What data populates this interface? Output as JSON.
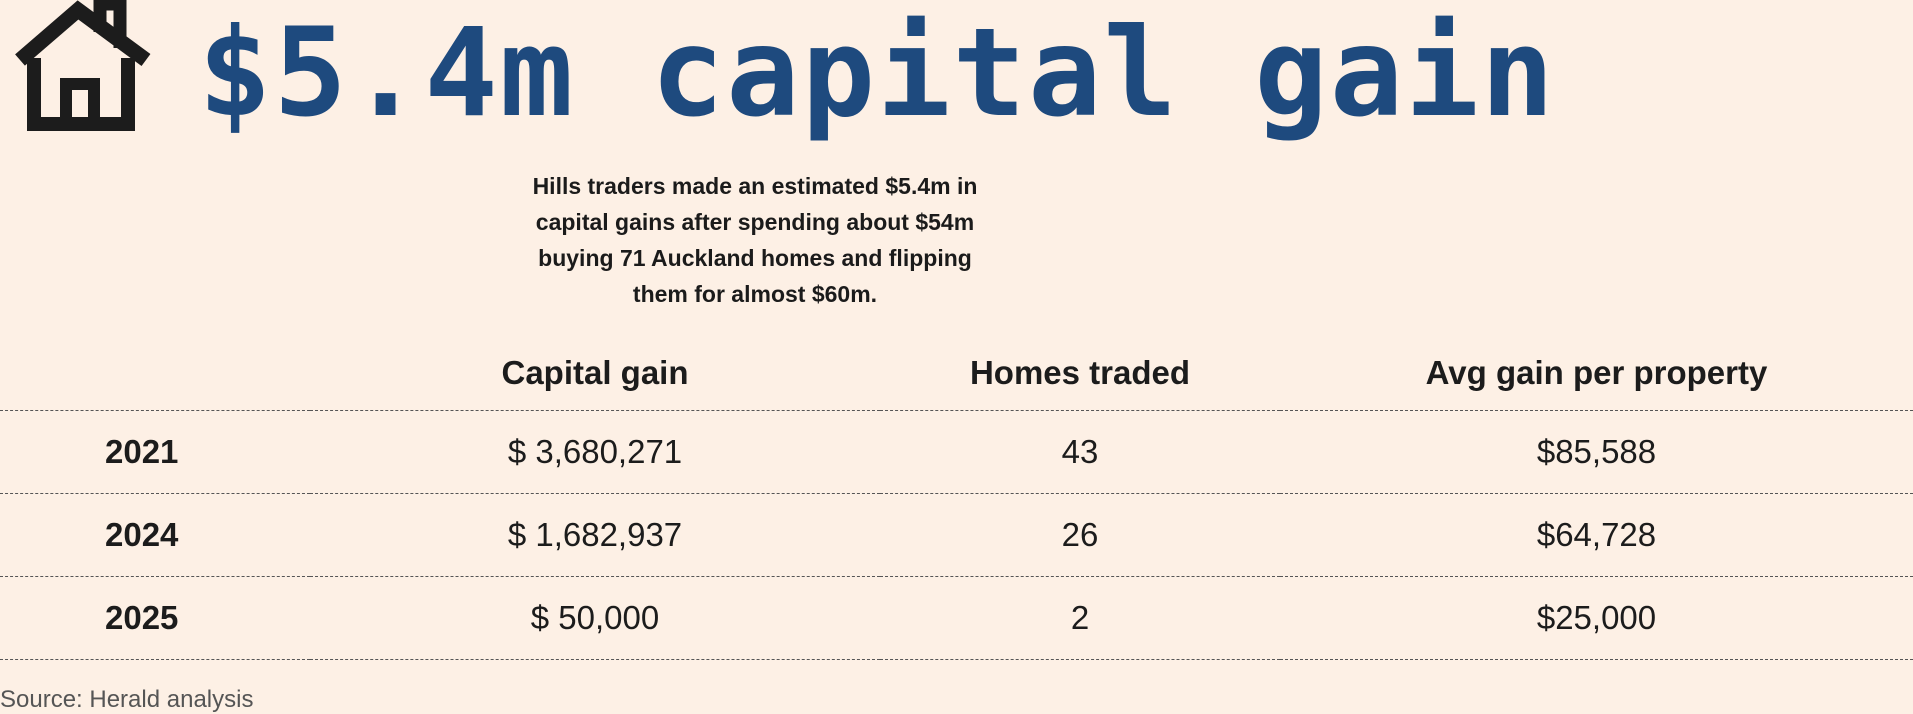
{
  "header": {
    "headline": "$5.4m capital gain",
    "subtitle": "Hills traders made an estimated $5.4m in capital gains after spending about $54m buying 71 Auckland homes and flipping them for almost $60m.",
    "icon": "house-icon"
  },
  "colors": {
    "background": "#fdf0e5",
    "headline": "#1e4a7e",
    "text": "#1c1c1c"
  },
  "chart_data": {
    "type": "table",
    "columns": [
      "",
      "Capital gain",
      "Homes traded",
      "Avg gain per property"
    ],
    "rows": [
      {
        "year": "2021",
        "capital_gain": "$ 3,680,271",
        "homes_traded": "43",
        "avg_gain": "$85,588"
      },
      {
        "year": "2024",
        "capital_gain": "$ 1,682,937",
        "homes_traded": "26",
        "avg_gain": "$64,728"
      },
      {
        "year": "2025",
        "capital_gain": "$ 50,000",
        "homes_traded": "2",
        "avg_gain": "$25,000"
      }
    ]
  },
  "footer": {
    "source": "Source: Herald analysis"
  }
}
